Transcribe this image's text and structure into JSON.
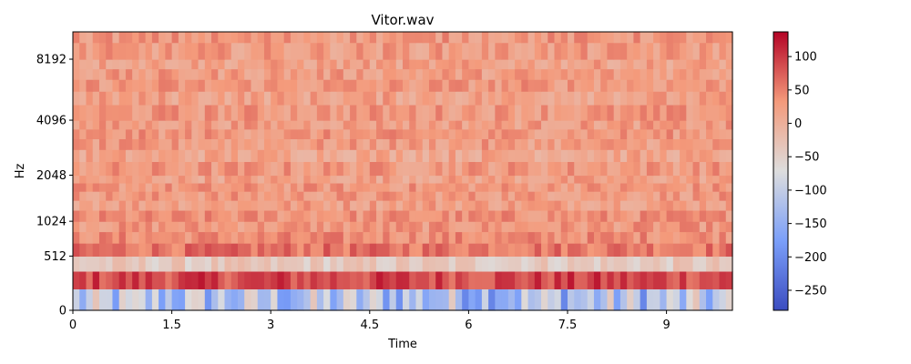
{
  "chart_data": {
    "type": "heatmap",
    "title": "Vitor.wav",
    "xlabel": "Time",
    "ylabel": "Hz",
    "xlim": [
      0,
      10
    ],
    "x_ticks": [
      0,
      1.5,
      3,
      4.5,
      6,
      7.5,
      9
    ],
    "x_tick_labels": [
      "0",
      "1.5",
      "3",
      "4.5",
      "6",
      "7.5",
      "9"
    ],
    "y_scale": "mel",
    "y_ticks": [
      0,
      512,
      1024,
      2048,
      4096,
      8192
    ],
    "y_tick_labels": [
      "0",
      "512",
      "1024",
      "2048",
      "4096",
      "8192"
    ],
    "y_band_edges_hz": [
      0,
      170,
      341,
      512,
      683,
      853,
      1024,
      1229,
      1433,
      1638,
      1843,
      2048,
      2458,
      2867,
      3277,
      3686,
      4096,
      4915,
      5734,
      6554,
      7373,
      8192,
      9830,
      11025
    ],
    "n_time_frames": 100,
    "band_mean_values": [
      -120,
      90,
      -40,
      60,
      40,
      30,
      35,
      25,
      28,
      30,
      20,
      30,
      15,
      25,
      30,
      25,
      30,
      20,
      30,
      25,
      20,
      25,
      30
    ],
    "colorbar": {
      "cmap": "coolwarm",
      "vmin": -280,
      "vmax": 137,
      "ticks": [
        100,
        50,
        0,
        -50,
        -100,
        -150,
        -200,
        -250
      ],
      "tick_labels": [
        "100",
        "50",
        "0",
        "−50",
        "−100",
        "−150",
        "−200",
        "−250"
      ]
    },
    "grid": false
  }
}
